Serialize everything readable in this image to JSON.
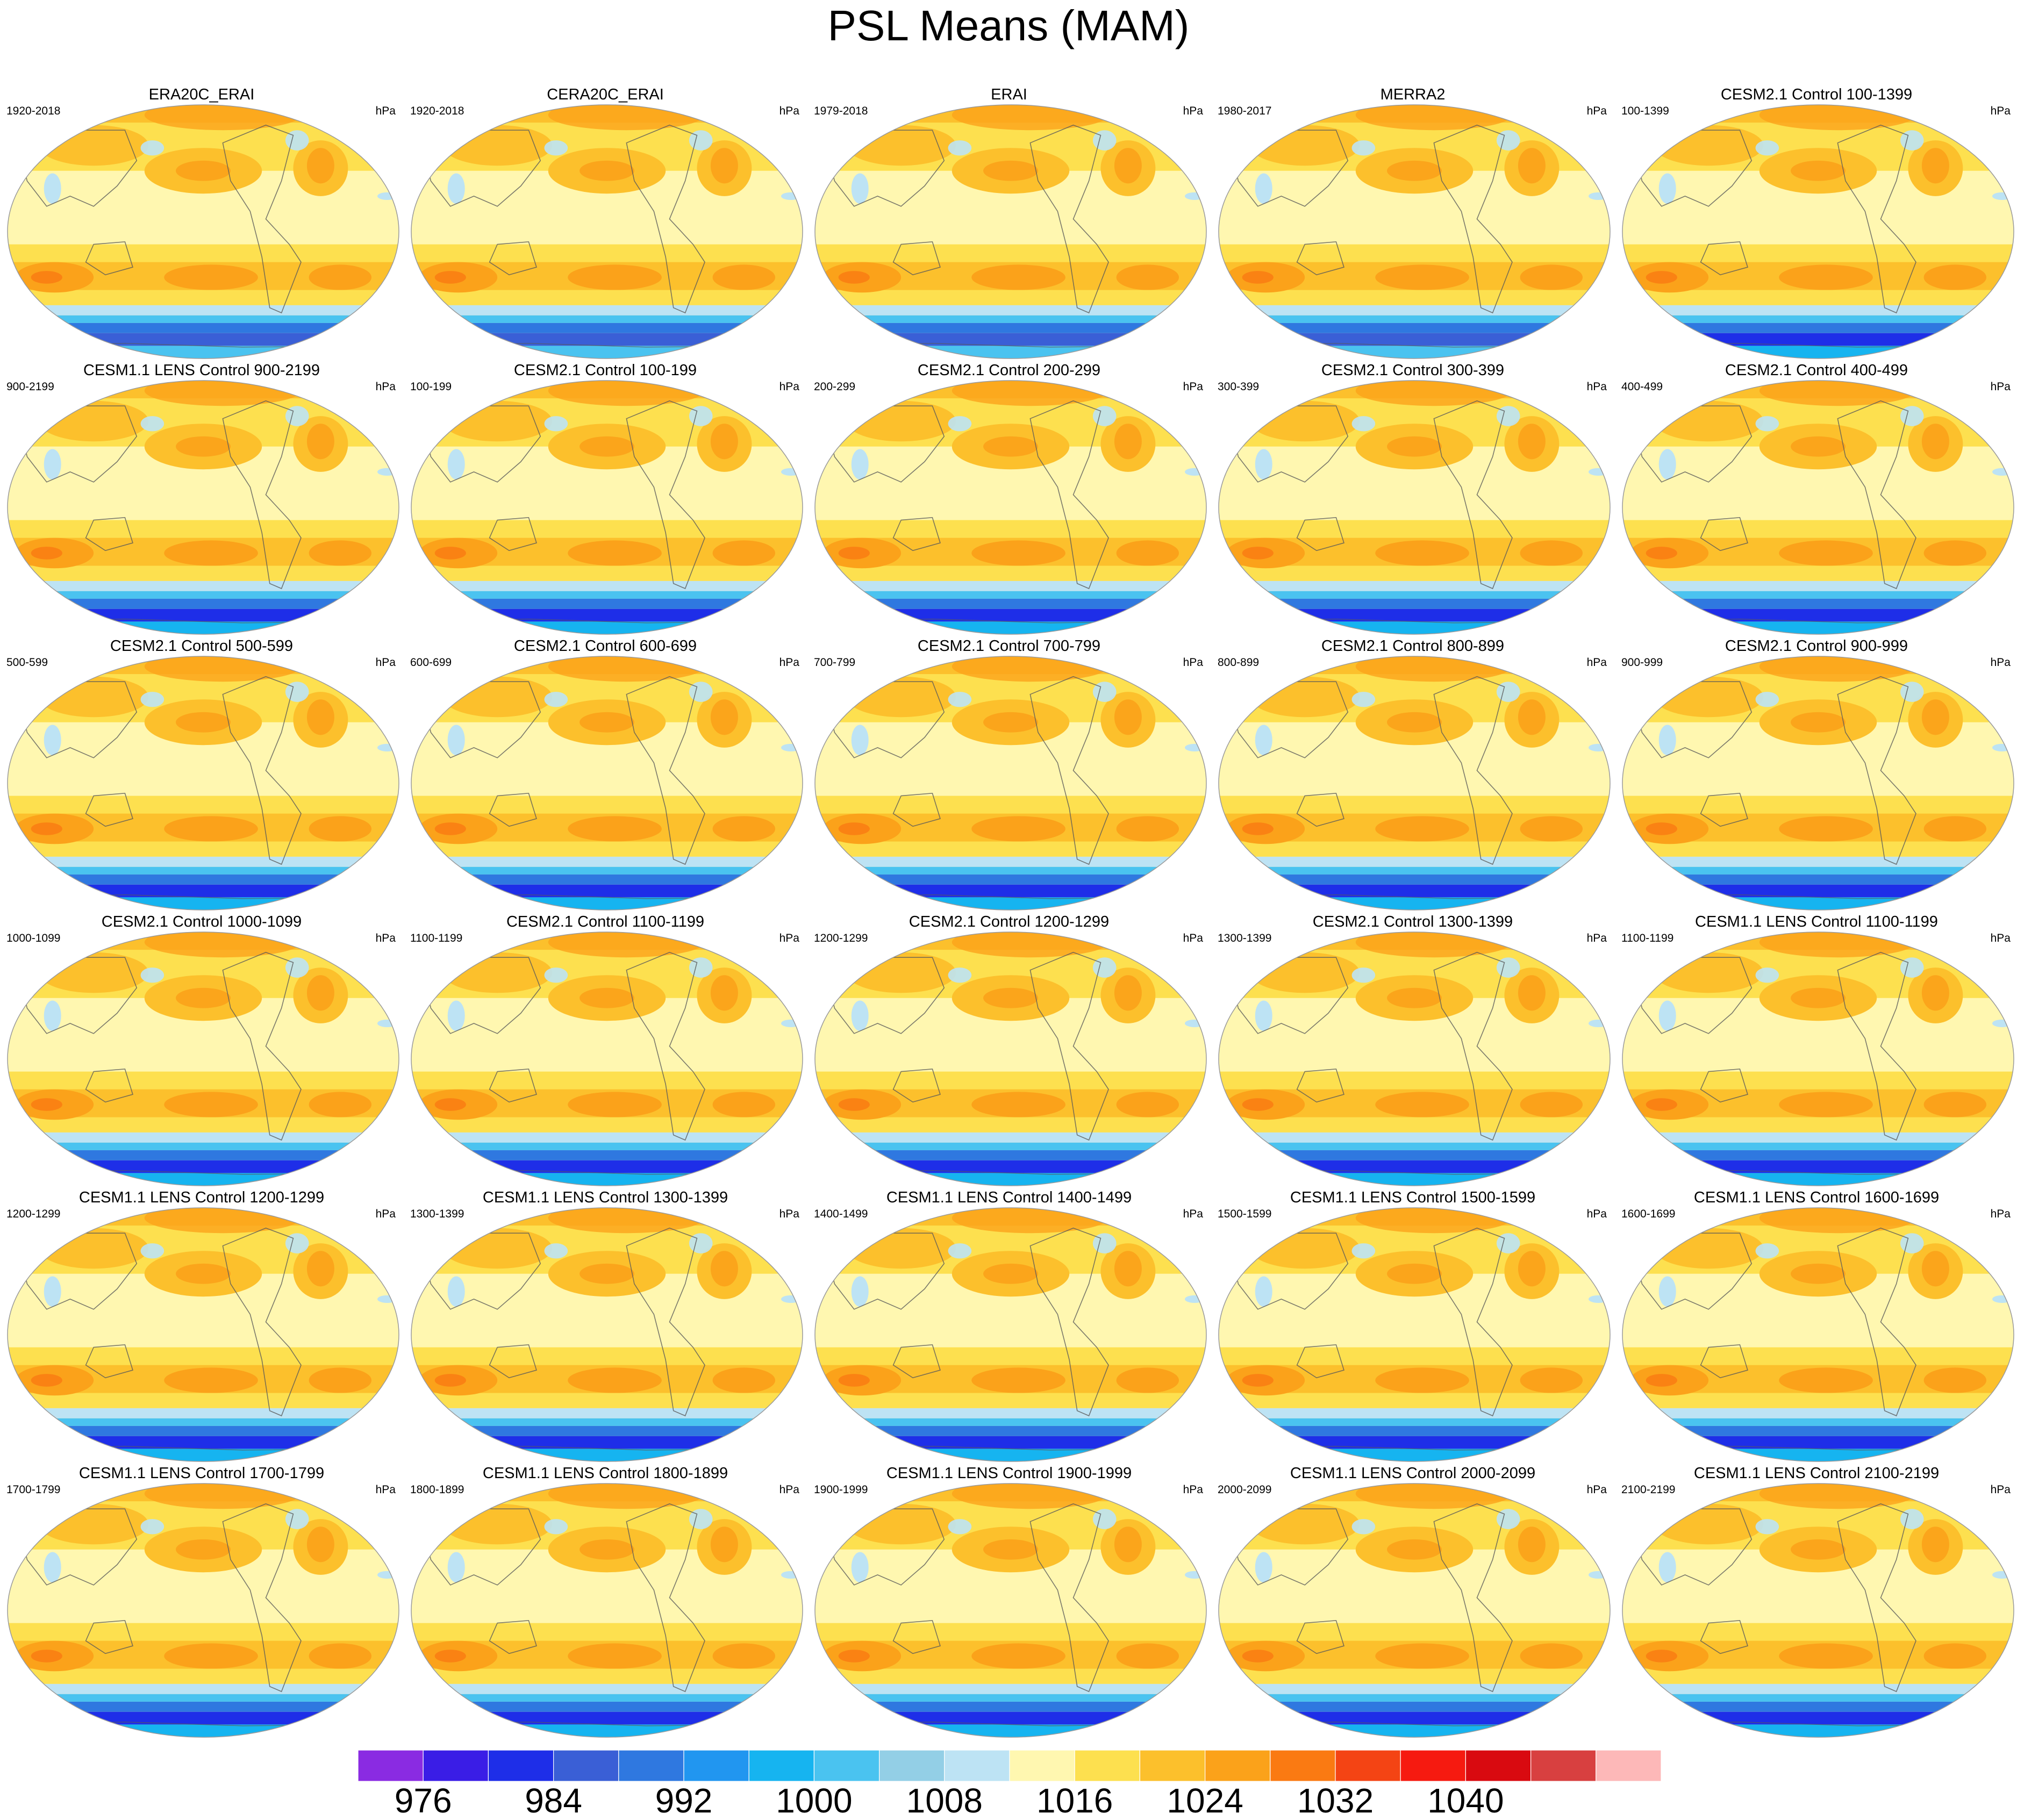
{
  "title": "PSL Means (MAM)",
  "unit": "hPa",
  "panels": [
    {
      "title": "ERA20C_ERAI",
      "range": "1920-2018"
    },
    {
      "title": "CERA20C_ERAI",
      "range": "1920-2018"
    },
    {
      "title": "ERAI",
      "range": "1979-2018"
    },
    {
      "title": "MERRA2",
      "range": "1980-2017"
    },
    {
      "title": "CESM2.1 Control 100-1399",
      "range": "100-1399"
    },
    {
      "title": "CESM1.1 LENS Control 900-2199",
      "range": "900-2199"
    },
    {
      "title": "CESM2.1 Control 100-199",
      "range": "100-199"
    },
    {
      "title": "CESM2.1 Control 200-299",
      "range": "200-299"
    },
    {
      "title": "CESM2.1 Control 300-399",
      "range": "300-399"
    },
    {
      "title": "CESM2.1 Control 400-499",
      "range": "400-499"
    },
    {
      "title": "CESM2.1 Control 500-599",
      "range": "500-599"
    },
    {
      "title": "CESM2.1 Control 600-699",
      "range": "600-699"
    },
    {
      "title": "CESM2.1 Control 700-799",
      "range": "700-799"
    },
    {
      "title": "CESM2.1 Control 800-899",
      "range": "800-899"
    },
    {
      "title": "CESM2.1 Control 900-999",
      "range": "900-999"
    },
    {
      "title": "CESM2.1 Control 1000-1099",
      "range": "1000-1099"
    },
    {
      "title": "CESM2.1 Control 1100-1199",
      "range": "1100-1199"
    },
    {
      "title": "CESM2.1 Control 1200-1299",
      "range": "1200-1299"
    },
    {
      "title": "CESM2.1 Control 1300-1399",
      "range": "1300-1399"
    },
    {
      "title": "CESM1.1 LENS Control 1100-1199",
      "range": "1100-1199"
    },
    {
      "title": "CESM1.1 LENS Control 1200-1299",
      "range": "1200-1299"
    },
    {
      "title": "CESM1.1 LENS Control 1300-1399",
      "range": "1300-1399"
    },
    {
      "title": "CESM1.1 LENS Control 1400-1499",
      "range": "1400-1499"
    },
    {
      "title": "CESM1.1 LENS Control 1500-1599",
      "range": "1500-1599"
    },
    {
      "title": "CESM1.1 LENS Control 1600-1699",
      "range": "1600-1699"
    },
    {
      "title": "CESM1.1 LENS Control 1700-1799",
      "range": "1700-1799"
    },
    {
      "title": "CESM1.1 LENS Control 1800-1899",
      "range": "1800-1899"
    },
    {
      "title": "CESM1.1 LENS Control 1900-1999",
      "range": "1900-1999"
    },
    {
      "title": "CESM1.1 LENS Control 2000-2099",
      "range": "2000-2099"
    },
    {
      "title": "CESM1.1 LENS Control 2100-2199",
      "range": "2100-2199"
    }
  ],
  "chart_data": {
    "type": "heatmap",
    "title": "PSL Means (MAM)",
    "projection": "robinson-like global map, Pacific-centered",
    "grid": {
      "rows": 6,
      "cols": 5
    },
    "unit": "hPa",
    "colorbar": {
      "colors": [
        "#8a2be2",
        "#3a1de6",
        "#1e2ee8",
        "#3a5fd6",
        "#2f78e0",
        "#2196f0",
        "#16b4f0",
        "#4ac3f0",
        "#93cfe6",
        "#bde3f4",
        "#fff7b0",
        "#fde04f",
        "#fcc02c",
        "#fba21a",
        "#fa7a12",
        "#f44414",
        "#f61a10",
        "#d90a10",
        "#d84040",
        "#fdb8b8"
      ],
      "tick_values": [
        976,
        984,
        992,
        1000,
        1008,
        1016,
        1024,
        1032,
        1040
      ],
      "tick_labels": [
        "976",
        "984",
        "992",
        "1000",
        "1008",
        "1016",
        "1024",
        "1032",
        "1040"
      ],
      "levels_min": 972,
      "levels_step": 4
    }
  }
}
